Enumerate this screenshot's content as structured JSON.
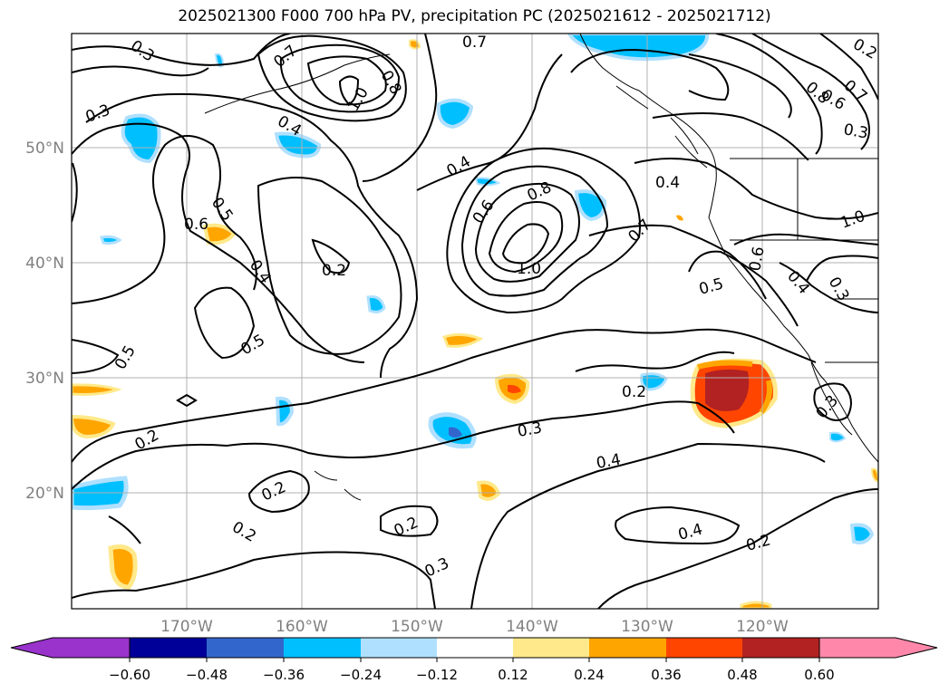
{
  "title": "2025021300 F000 700 hPa PV, precipitation PC (2025021612 - 2025021712)",
  "colors": {
    "contour": "#000000",
    "grid": "#b0b0b0",
    "coast": "#000000",
    "tick_label": "#808080",
    "pc_levels": [
      "#9933cc",
      "#000099",
      "#3366cc",
      "#00bfff",
      "#b0e0ff",
      "#ffffff",
      "#ffe98a",
      "#ffa500",
      "#ff4500",
      "#b22222",
      "#ff88aa"
    ]
  },
  "lon_labels": [
    "170°W",
    "160°W",
    "150°W",
    "140°W",
    "130°W",
    "120°W"
  ],
  "lat_labels": [
    "50°N",
    "40°N",
    "30°N",
    "20°N"
  ],
  "colorbar": {
    "ticks": [
      "−0.60",
      "−0.48",
      "−0.36",
      "−0.24",
      "−0.12",
      "0.12",
      "0.24",
      "0.36",
      "0.48",
      "0.60"
    ],
    "extend": "both"
  },
  "contour_labels": [
    "0.3",
    "0.7",
    "0.8",
    "1.0",
    "0.7",
    "0.4",
    "0.3",
    "0.4",
    "0.6",
    "0.8",
    "1.0",
    "0.7",
    "0.4",
    "0.5",
    "0.6",
    "0.5",
    "0.4",
    "0.2",
    "0.5",
    "0.5",
    "0.6",
    "0.8",
    "0.7",
    "1.0",
    "0.6",
    "0.4",
    "0.3",
    "0.2",
    "0.2",
    "0.3",
    "0.2",
    "0.3",
    "0.4",
    "0.4",
    "0.2",
    "0.2",
    "0.2",
    "0.2",
    "0.3",
    "0.3"
  ]
}
